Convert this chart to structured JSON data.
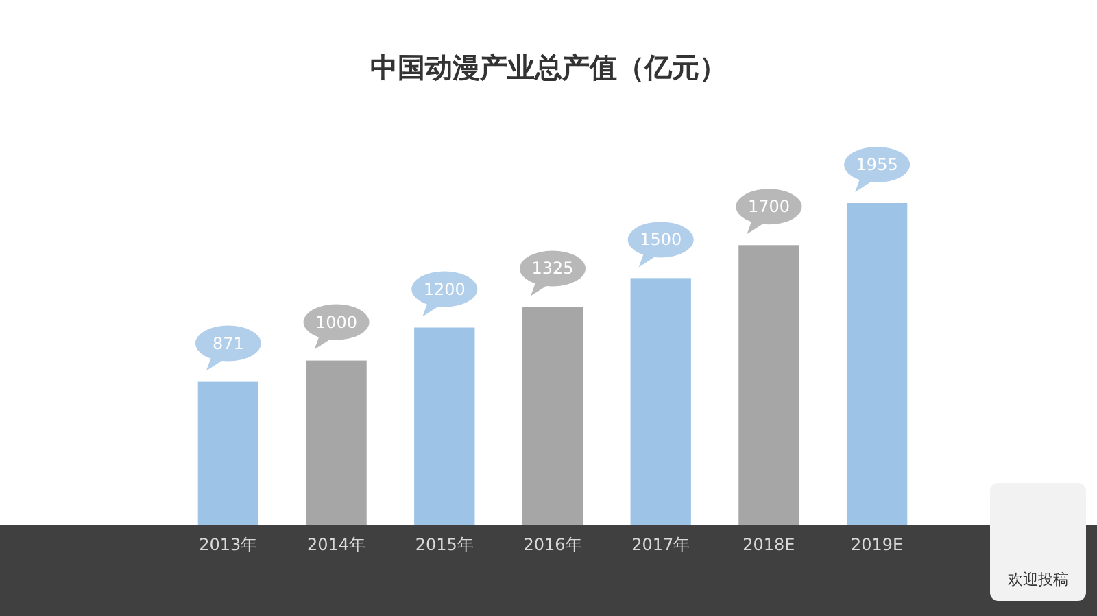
{
  "chart_data": {
    "type": "bar",
    "title": "中国动漫产业总产值（亿元）",
    "categories": [
      "2013年",
      "2014年",
      "2015年",
      "2016年",
      "2017年",
      "2018E",
      "2019E"
    ],
    "values": [
      871,
      1000,
      1200,
      1325,
      1500,
      1700,
      1955
    ],
    "colors": [
      "#9dc3e6",
      "#a6a6a6",
      "#9dc3e6",
      "#a6a6a6",
      "#9dc3e6",
      "#a6a6a6",
      "#9dc3e6"
    ],
    "data_labels": true,
    "annotations": [
      "欢迎投稿"
    ]
  }
}
